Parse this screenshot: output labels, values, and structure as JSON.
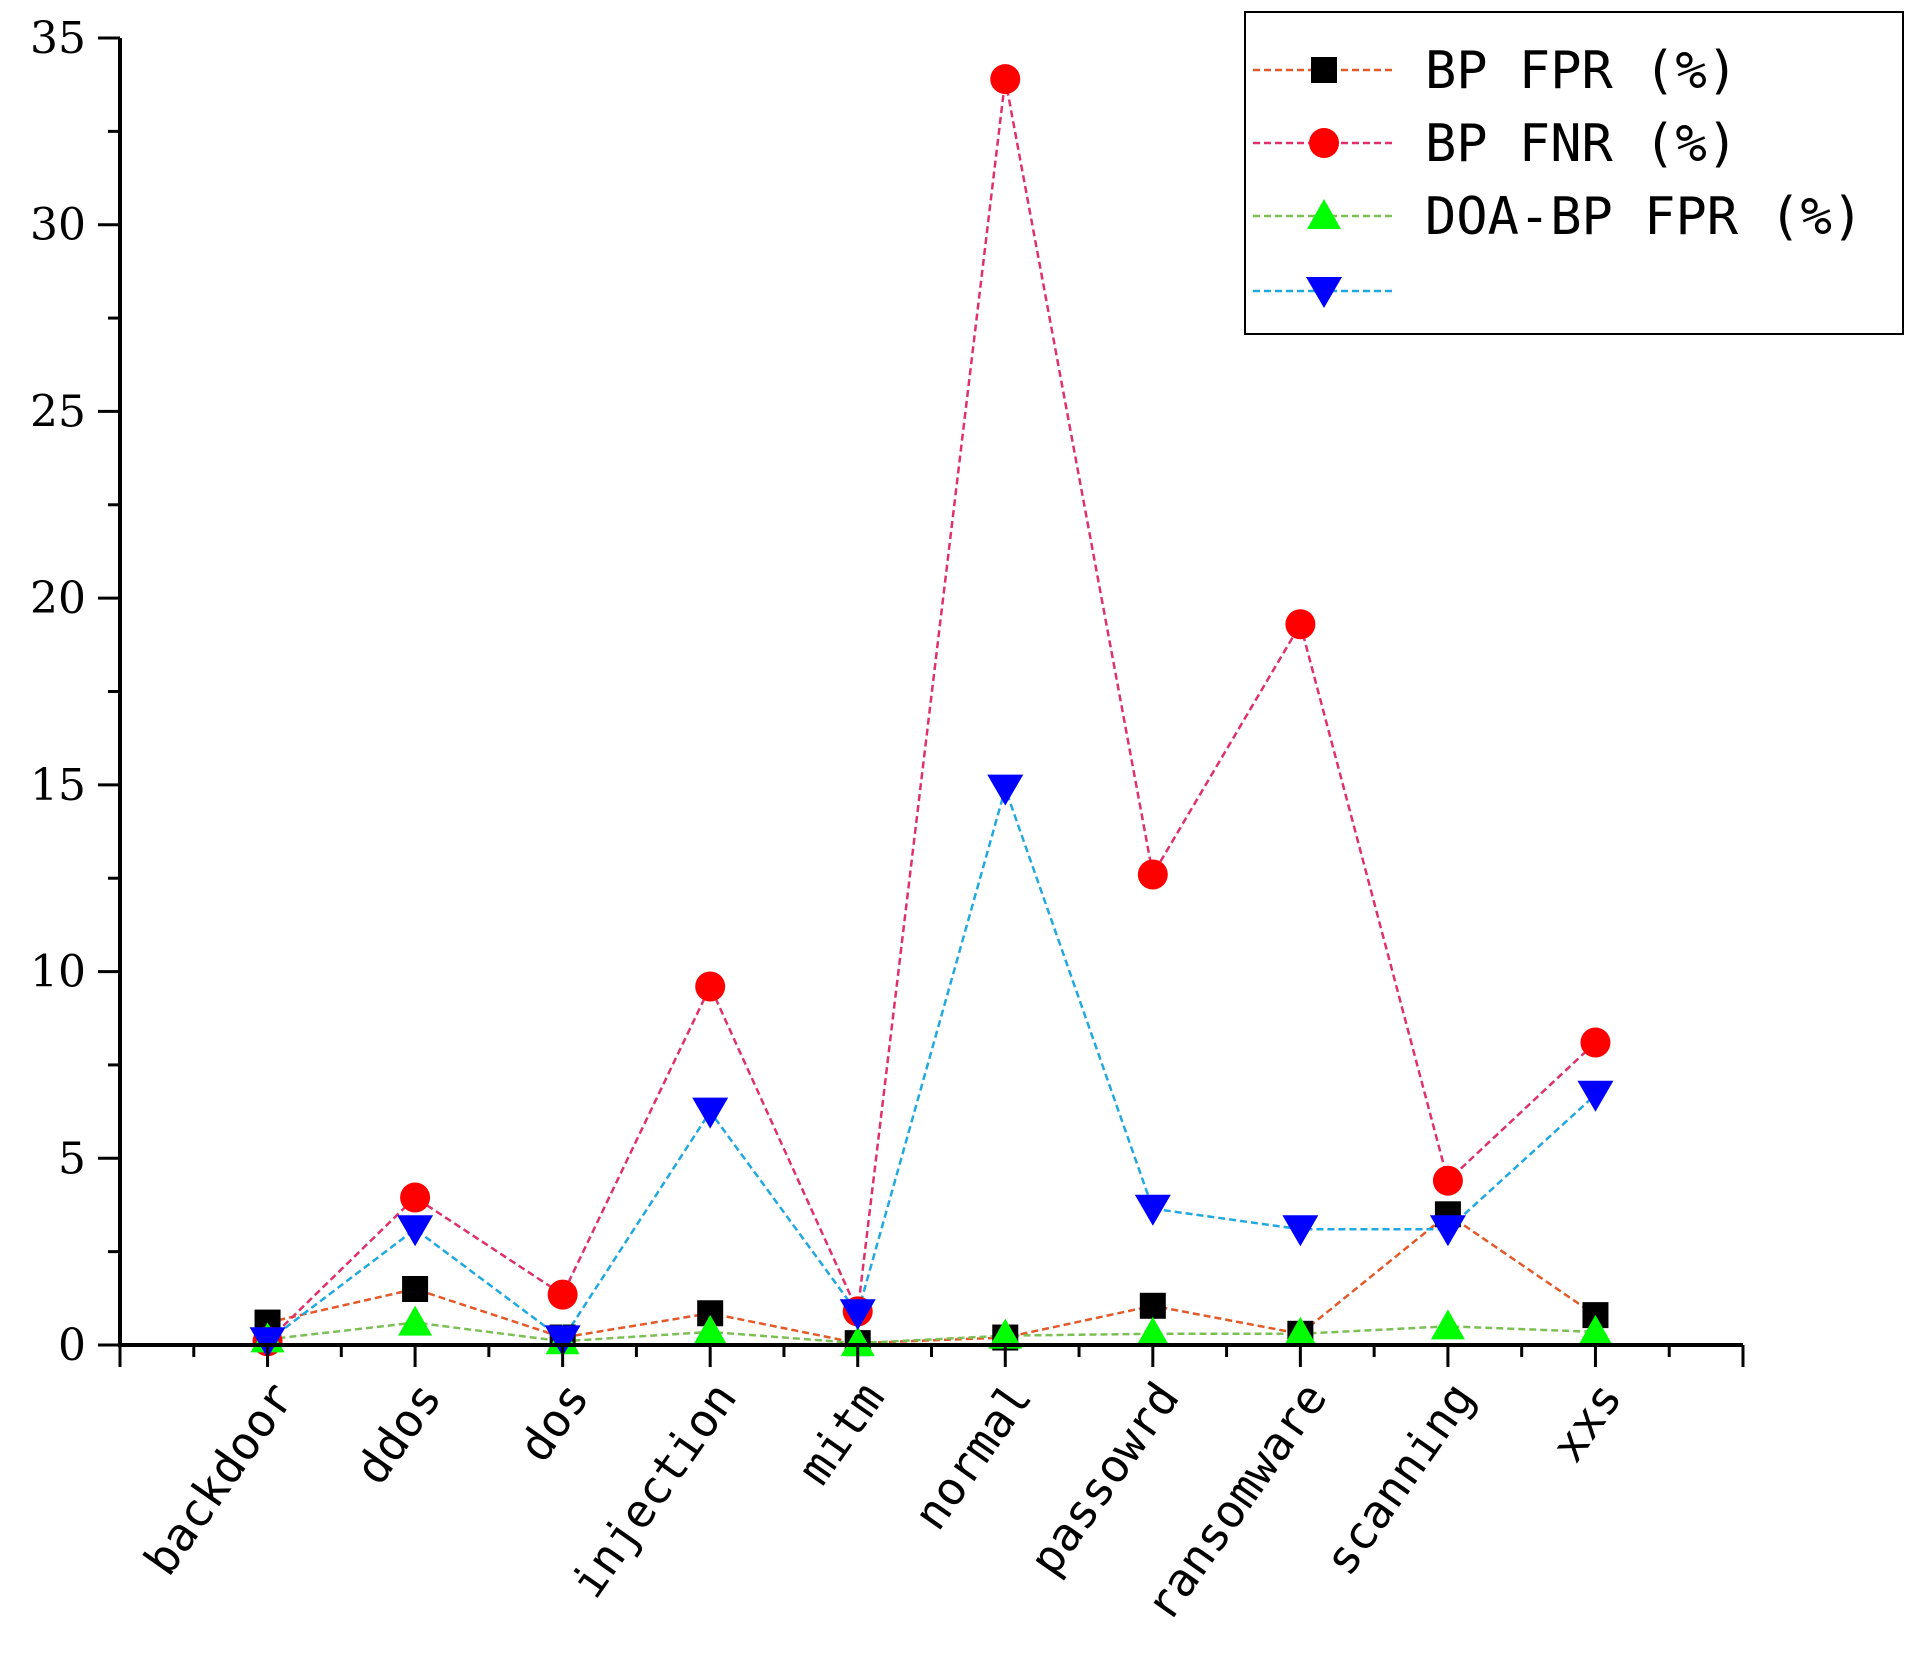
{
  "chart_data": {
    "type": "line",
    "title": "",
    "xlabel": "",
    "ylabel": "",
    "ylim": [
      0,
      35
    ],
    "yticks": [
      0,
      5,
      10,
      15,
      20,
      25,
      30,
      35
    ],
    "grid": false,
    "legend_position": "top-right",
    "categories": [
      "backdoor",
      "ddos",
      "dos",
      "injection",
      "mitm",
      "normal",
      "passowrd",
      "ransomware",
      "scanning",
      "xxs"
    ],
    "series": [
      {
        "name": "BP FPR (%)",
        "marker": "square",
        "marker_color": "#000000",
        "line_color": "#e4592a",
        "values": [
          0.6,
          1.5,
          0.2,
          0.85,
          0.05,
          0.2,
          1.05,
          0.3,
          3.5,
          0.8
        ]
      },
      {
        "name": "BP FNR (%)",
        "marker": "circle",
        "marker_color": "#ff0000",
        "line_color": "#e0306a",
        "values": [
          0.1,
          3.95,
          1.35,
          9.6,
          0.9,
          33.9,
          12.6,
          19.3,
          4.4,
          8.1
        ]
      },
      {
        "name": "DOA-BP FPR (%)",
        "marker": "triangle-up",
        "marker_color": "#00ff00",
        "line_color": "#7cbf55",
        "values": [
          0.15,
          0.6,
          0.1,
          0.35,
          0.05,
          0.25,
          0.3,
          0.3,
          0.5,
          0.35
        ]
      },
      {
        "name": "",
        "marker": "triangle-down",
        "marker_color": "#0000ff",
        "line_color": "#20a8e0",
        "values": [
          0.1,
          3.1,
          0.15,
          6.25,
          0.85,
          14.9,
          3.65,
          3.1,
          3.1,
          6.7
        ]
      }
    ]
  }
}
